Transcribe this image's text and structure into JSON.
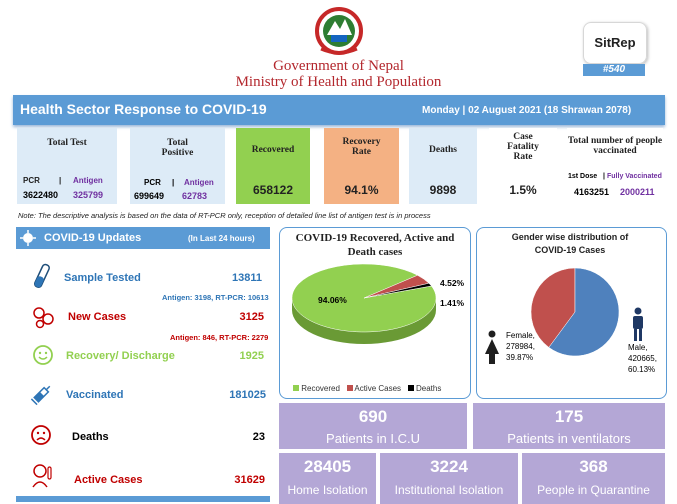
{
  "header": {
    "gov_line1": "Government of Nepal",
    "gov_line2": "Ministry of Health and Population",
    "sitrep_label": "SitRep",
    "sitrep_number": "#540"
  },
  "banner": {
    "title": "Health Sector Response to COVID-19",
    "date": "Monday  |  02 August 2021 (18 Shrawan 2078)"
  },
  "tiles": {
    "total_test": {
      "label": "Total Test",
      "pcr_label": "PCR",
      "antigen_label": "Antigen",
      "pcr": "3622480",
      "antigen": "325799"
    },
    "total_positive": {
      "label": "Total Positive",
      "pcr_label": "PCR",
      "antigen_label": "Antigen",
      "pcr": "699649",
      "antigen": "62783"
    },
    "recovered": {
      "label": "Recovered",
      "value": "658122"
    },
    "recovery_rate": {
      "label": "Recovery Rate",
      "value": "94.1%"
    },
    "deaths": {
      "label": "Deaths",
      "value": "9898"
    },
    "cfr": {
      "label": "Case Fatality Rate",
      "value": "1.5%"
    },
    "vaccinated": {
      "label": "Total number of people vaccinated",
      "first_dose_label": "1st Dose",
      "full_label": "Fully Vaccinated",
      "first_dose": "4163251",
      "full": "2000211"
    }
  },
  "note": "Note: The descriptive analysis is based on the data of RT-PCR only, reception of detailed line list of antigen test is in process",
  "updates": {
    "title": "COVID-19 Updates",
    "period": "(In Last 24 hours)",
    "sample_tested_label": "Sample Tested",
    "sample_tested": "13811",
    "sample_sub": "Antigen: 3198, RT-PCR: 10613",
    "new_cases_label": "New Cases",
    "new_cases": "3125",
    "new_cases_sub": "Antigen: 846, RT-PCR: 2279",
    "recovery_label": "Recovery/ Discharge",
    "recovery": "1925",
    "vaccinated_label": "Vaccinated",
    "vaccinated": "181025",
    "deaths_label": "Deaths",
    "deaths": "23",
    "active_label": "Active Cases",
    "active": "31629"
  },
  "pie1": {
    "title": "COVID-19 Recovered, Active and Death cases",
    "label_recovered": "94.06%",
    "label_active": "4.52%",
    "label_deaths": "1.41%",
    "legend": [
      "Recovered",
      "Active Cases",
      "Deaths"
    ]
  },
  "pie2": {
    "title": "Gender wise distribution of COVID-19 Cases",
    "female_label": "Female,",
    "female_value": "278984,",
    "female_pct": "39.87%",
    "male_label": "Male,",
    "male_value": "420665,",
    "male_pct": "60.13%"
  },
  "chart_data": [
    {
      "type": "pie",
      "title": "COVID-19 Recovered, Active and Death cases",
      "categories": [
        "Recovered",
        "Active Cases",
        "Deaths"
      ],
      "values": [
        94.06,
        4.52,
        1.41
      ],
      "colors": [
        "#92d050",
        "#c0504d",
        "#000000"
      ]
    },
    {
      "type": "pie",
      "title": "Gender wise distribution of COVID-19 Cases",
      "categories": [
        "Female",
        "Male"
      ],
      "values": [
        278984,
        420665
      ],
      "percent": [
        39.87,
        60.13
      ],
      "colors": [
        "#c0504d",
        "#4f81bd"
      ]
    }
  ],
  "cards": {
    "icu_value": "690",
    "icu_label": "Patients in I.C.U",
    "vent_value": "175",
    "vent_label": "Patients in ventilators",
    "home_value": "28405",
    "home_label": "Home Isolation",
    "inst_value": "3224",
    "inst_label": "Institutional Isolation",
    "quar_value": "368",
    "quar_label": "People in Quarantine"
  },
  "colors": {
    "banner": "#5b9bd5",
    "recovered_tile": "#92d050",
    "rate_tile": "#f4b183",
    "test_tile": "#ddebf7",
    "card": "#b4a7d6"
  }
}
